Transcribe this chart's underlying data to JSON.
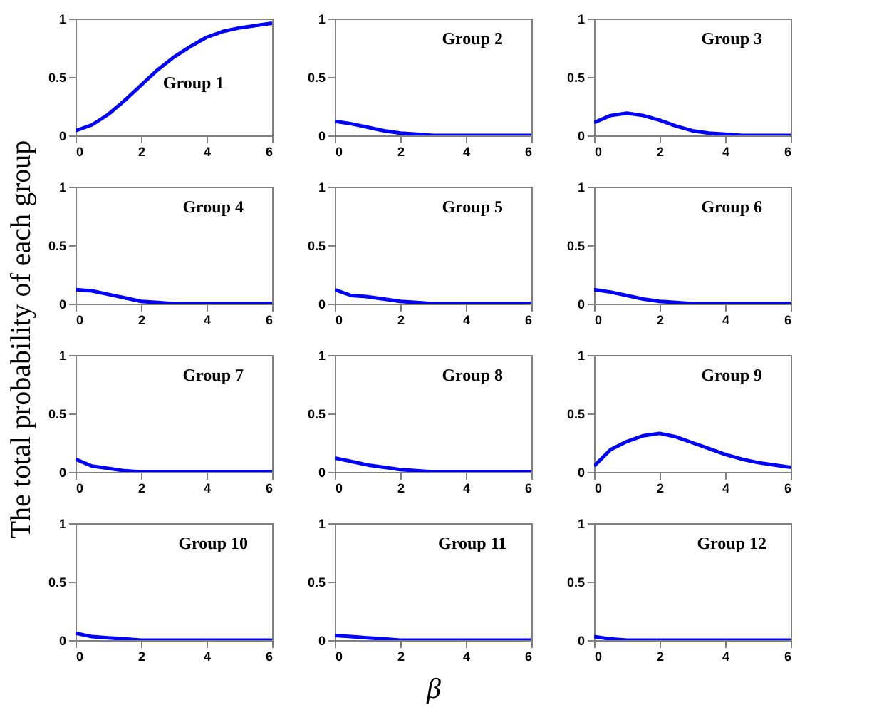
{
  "chart_data": [
    {
      "type": "line",
      "ylabel": "The total probability of each group",
      "annotations": [
        "Group 1"
      ],
      "x": [
        0,
        0.5,
        1,
        1.5,
        2,
        2.5,
        3,
        3.5,
        4,
        4.5,
        5,
        5.5,
        6
      ],
      "series": [
        {
          "color": "#0000ff",
          "values": [
            0.04,
            0.09,
            0.18,
            0.3,
            0.43,
            0.56,
            0.67,
            0.76,
            0.84,
            0.89,
            0.92,
            0.94,
            0.96
          ]
        }
      ],
      "xlim": [
        0,
        6
      ],
      "xticks": [
        0,
        2,
        4,
        6
      ],
      "ylim": [
        0,
        1
      ],
      "yticks": [
        0,
        0.5,
        1
      ],
      "line_style": "solid"
    },
    {
      "type": "line",
      "annotations": [
        "Group 2"
      ],
      "x": [
        0,
        0.5,
        1,
        1.5,
        2,
        2.5,
        3,
        3.5,
        4,
        4.5,
        5,
        5.5,
        6
      ],
      "series": [
        {
          "color": "#0000ff",
          "values": [
            0.12,
            0.1,
            0.07,
            0.04,
            0.02,
            0.01,
            0,
            0,
            0,
            0,
            0,
            0,
            0
          ]
        }
      ],
      "xlim": [
        0,
        6
      ],
      "xticks": [
        0,
        2,
        4,
        6
      ],
      "ylim": [
        0,
        1
      ],
      "yticks": [
        0,
        0.5,
        1
      ],
      "line_style": "solid"
    },
    {
      "type": "line",
      "annotations": [
        "Group 3"
      ],
      "x": [
        0,
        0.5,
        1,
        1.5,
        2,
        2.5,
        3,
        3.5,
        4,
        4.5,
        5,
        5.5,
        6
      ],
      "series": [
        {
          "color": "#0000ff",
          "values": [
            0.11,
            0.17,
            0.19,
            0.17,
            0.13,
            0.08,
            0.04,
            0.02,
            0.01,
            0,
            0,
            0,
            0
          ]
        }
      ],
      "xlim": [
        0,
        6
      ],
      "xticks": [
        0,
        2,
        4,
        6
      ],
      "ylim": [
        0,
        1
      ],
      "yticks": [
        0,
        0.5,
        1
      ],
      "line_style": "solid"
    },
    {
      "type": "line",
      "annotations": [
        "Group 4"
      ],
      "x": [
        0,
        0.5,
        1,
        1.5,
        2,
        2.5,
        3,
        3.5,
        4,
        4.5,
        5,
        5.5,
        6
      ],
      "series": [
        {
          "color": "#0000ff",
          "values": [
            0.12,
            0.11,
            0.08,
            0.05,
            0.02,
            0.01,
            0,
            0,
            0,
            0,
            0,
            0,
            0
          ]
        }
      ],
      "xlim": [
        0,
        6
      ],
      "xticks": [
        0,
        2,
        4,
        6
      ],
      "ylim": [
        0,
        1
      ],
      "yticks": [
        0,
        0.5,
        1
      ],
      "line_style": "solid"
    },
    {
      "type": "line",
      "annotations": [
        "Group 5"
      ],
      "x": [
        0,
        0.5,
        1,
        1.5,
        2,
        2.5,
        3,
        3.5,
        4,
        4.5,
        5,
        5.5,
        6
      ],
      "series": [
        {
          "color": "#0000ff",
          "values": [
            0.12,
            0.07,
            0.06,
            0.04,
            0.02,
            0.01,
            0,
            0,
            0,
            0,
            0,
            0,
            0
          ]
        }
      ],
      "xlim": [
        0,
        6
      ],
      "xticks": [
        0,
        2,
        4,
        6
      ],
      "ylim": [
        0,
        1
      ],
      "yticks": [
        0,
        0.5,
        1
      ],
      "line_style": "solid"
    },
    {
      "type": "line",
      "annotations": [
        "Group 6"
      ],
      "x": [
        0,
        0.5,
        1,
        1.5,
        2,
        2.5,
        3,
        3.5,
        4,
        4.5,
        5,
        5.5,
        6
      ],
      "series": [
        {
          "color": "#0000ff",
          "values": [
            0.12,
            0.1,
            0.07,
            0.04,
            0.02,
            0.01,
            0,
            0,
            0,
            0,
            0,
            0,
            0
          ]
        }
      ],
      "xlim": [
        0,
        6
      ],
      "xticks": [
        0,
        2,
        4,
        6
      ],
      "ylim": [
        0,
        1
      ],
      "yticks": [
        0,
        0.5,
        1
      ],
      "line_style": "solid"
    },
    {
      "type": "line",
      "annotations": [
        "Group 7"
      ],
      "x": [
        0,
        0.5,
        1,
        1.5,
        2,
        2.5,
        3,
        3.5,
        4,
        4.5,
        5,
        5.5,
        6
      ],
      "series": [
        {
          "color": "#0000ff",
          "values": [
            0.11,
            0.05,
            0.03,
            0.01,
            0,
            0,
            0,
            0,
            0,
            0,
            0,
            0,
            0
          ]
        }
      ],
      "xlim": [
        0,
        6
      ],
      "xticks": [
        0,
        2,
        4,
        6
      ],
      "ylim": [
        0,
        1
      ],
      "yticks": [
        0,
        0.5,
        1
      ],
      "line_style": "solid"
    },
    {
      "type": "line",
      "annotations": [
        "Group 8"
      ],
      "x": [
        0,
        0.5,
        1,
        1.5,
        2,
        2.5,
        3,
        3.5,
        4,
        4.5,
        5,
        5.5,
        6
      ],
      "series": [
        {
          "color": "#0000ff",
          "values": [
            0.12,
            0.09,
            0.06,
            0.04,
            0.02,
            0.01,
            0,
            0,
            0,
            0,
            0,
            0,
            0
          ]
        }
      ],
      "xlim": [
        0,
        6
      ],
      "xticks": [
        0,
        2,
        4,
        6
      ],
      "ylim": [
        0,
        1
      ],
      "yticks": [
        0,
        0.5,
        1
      ],
      "line_style": "solid"
    },
    {
      "type": "line",
      "annotations": [
        "Group 9"
      ],
      "x": [
        0,
        0.5,
        1,
        1.5,
        2,
        2.5,
        3,
        3.5,
        4,
        4.5,
        5,
        5.5,
        6
      ],
      "series": [
        {
          "color": "#0000ff",
          "values": [
            0.05,
            0.19,
            0.26,
            0.31,
            0.33,
            0.3,
            0.25,
            0.2,
            0.15,
            0.11,
            0.08,
            0.06,
            0.04
          ]
        }
      ],
      "xlim": [
        0,
        6
      ],
      "xticks": [
        0,
        2,
        4,
        6
      ],
      "ylim": [
        0,
        1
      ],
      "yticks": [
        0,
        0.5,
        1
      ],
      "line_style": "solid"
    },
    {
      "type": "line",
      "annotations": [
        "Group 10"
      ],
      "x": [
        0,
        0.5,
        1,
        1.5,
        2,
        2.5,
        3,
        3.5,
        4,
        4.5,
        5,
        5.5,
        6
      ],
      "series": [
        {
          "color": "#0000ff",
          "values": [
            0.06,
            0.03,
            0.02,
            0.01,
            0,
            0,
            0,
            0,
            0,
            0,
            0,
            0,
            0
          ]
        }
      ],
      "xlim": [
        0,
        6
      ],
      "xticks": [
        0,
        2,
        4,
        6
      ],
      "ylim": [
        0,
        1
      ],
      "yticks": [
        0,
        0.5,
        1
      ],
      "line_style": "solid"
    },
    {
      "type": "line",
      "xlabel": "β",
      "annotations": [
        "Group 11"
      ],
      "x": [
        0,
        0.5,
        1,
        1.5,
        2,
        2.5,
        3,
        3.5,
        4,
        4.5,
        5,
        5.5,
        6
      ],
      "series": [
        {
          "color": "#0000ff",
          "values": [
            0.04,
            0.03,
            0.02,
            0.01,
            0,
            0,
            0,
            0,
            0,
            0,
            0,
            0,
            0
          ]
        }
      ],
      "xlim": [
        0,
        6
      ],
      "xticks": [
        0,
        2,
        4,
        6
      ],
      "ylim": [
        0,
        1
      ],
      "yticks": [
        0,
        0.5,
        1
      ],
      "line_style": "solid"
    },
    {
      "type": "line",
      "annotations": [
        "Group 12"
      ],
      "x": [
        0,
        0.5,
        1,
        1.5,
        2,
        2.5,
        3,
        3.5,
        4,
        4.5,
        5,
        5.5,
        6
      ],
      "series": [
        {
          "color": "#0000ff",
          "values": [
            0.03,
            0.01,
            0,
            0,
            0,
            0,
            0,
            0,
            0,
            0,
            0,
            0,
            0
          ]
        }
      ],
      "xlim": [
        0,
        6
      ],
      "xticks": [
        0,
        2,
        4,
        6
      ],
      "ylim": [
        0,
        1
      ],
      "yticks": [
        0,
        0.5,
        1
      ],
      "line_style": "solid"
    }
  ]
}
